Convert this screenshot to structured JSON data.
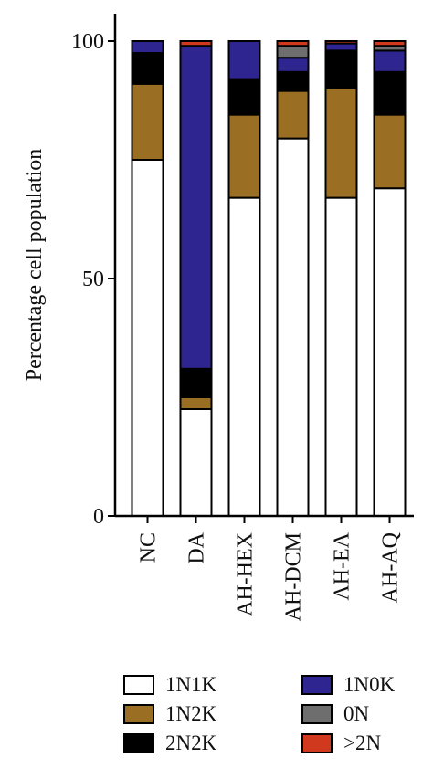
{
  "chart_data": {
    "type": "bar",
    "stacked": true,
    "ylabel": "Percentage cell population",
    "ylim": [
      0,
      100
    ],
    "yticks": [
      0,
      50,
      100
    ],
    "categories": [
      "NC",
      "DA",
      "AH-HEX",
      "AH-DCM",
      "AH-EA",
      "AH-AQ"
    ],
    "series": [
      {
        "name": "1N1K",
        "color": "#ffffff",
        "values": [
          75,
          22.5,
          67,
          79.5,
          67,
          69
        ]
      },
      {
        "name": "1N2K",
        "color": "#9a6f24",
        "values": [
          16,
          2.5,
          17.5,
          10,
          23,
          15.5
        ]
      },
      {
        "name": "2N2K",
        "color": "#000000",
        "values": [
          6.5,
          6,
          7.5,
          4,
          8,
          9
        ]
      },
      {
        "name": "1N0K",
        "color": "#2e2590",
        "values": [
          2.5,
          68,
          8,
          3,
          1.5,
          4.5
        ]
      },
      {
        "name": "0N",
        "color": "#6e6e6e",
        "values": [
          0,
          0,
          0,
          2.5,
          0,
          1
        ]
      },
      {
        "name": ">2N",
        "color": "#d0391e",
        "values": [
          0,
          1,
          0,
          1,
          0.5,
          1
        ]
      }
    ],
    "legend_position": "bottom"
  },
  "legend": {
    "items": [
      {
        "label": "1N1K",
        "color": "#ffffff"
      },
      {
        "label": "1N0K",
        "color": "#2e2590"
      },
      {
        "label": "1N2K",
        "color": "#9a6f24"
      },
      {
        "label": "0N",
        "color": "#6e6e6e"
      },
      {
        "label": "2N2K",
        "color": "#000000"
      },
      {
        "label": ">2N",
        "color": "#d0391e"
      }
    ]
  }
}
